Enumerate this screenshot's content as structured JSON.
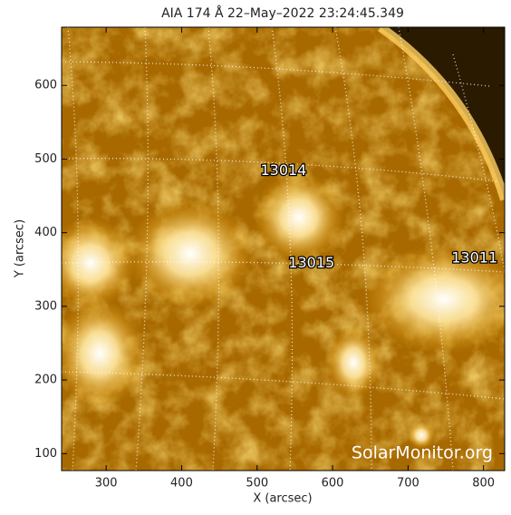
{
  "chart_data": {
    "type": "image",
    "title": "AIA 174 Å 22–May–2022 23:24:45.349",
    "xlabel": "X (arcsec)",
    "ylabel": "Y (arcsec)",
    "xlim": [
      241,
      828
    ],
    "ylim": [
      77,
      679
    ],
    "xticks": [
      300,
      400,
      500,
      600,
      700,
      800
    ],
    "yticks": [
      100,
      200,
      300,
      400,
      500,
      600
    ],
    "annotations": [
      {
        "text": "13014",
        "x": 535,
        "y": 484
      },
      {
        "text": "13015",
        "x": 572,
        "y": 358
      },
      {
        "text": "13011",
        "x": 788,
        "y": 365
      }
    ],
    "watermark": "SolarMonitor.org"
  }
}
